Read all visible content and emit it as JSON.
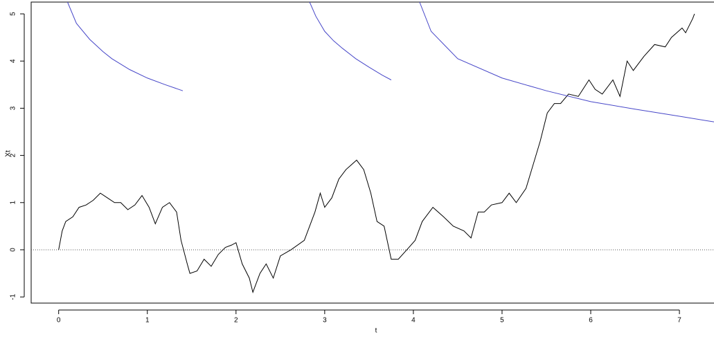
{
  "chart_data": {
    "type": "line",
    "xlabel": "t",
    "ylabel": "Xt",
    "xlim": [
      -0.31,
      7.39
    ],
    "ylim": [
      -1.13,
      5.25
    ],
    "xticks": [
      0,
      1,
      2,
      3,
      4,
      5,
      6,
      7
    ],
    "yticks": [
      -1,
      0,
      1,
      2,
      3,
      4,
      5
    ],
    "hline": 0,
    "series": [
      {
        "color": "#000000",
        "x": [
          0,
          0.04,
          0.08,
          0.16,
          0.23,
          0.31,
          0.39,
          0.47,
          0.55,
          0.63,
          0.7,
          0.78,
          0.86,
          0.94,
          1.02,
          1.09,
          1.17,
          1.25,
          1.33,
          1.38,
          1.45,
          1.48,
          1.56,
          1.64,
          1.72,
          1.8,
          1.88,
          1.95,
          2.0,
          2.07,
          2.15,
          2.19,
          2.27,
          2.34,
          2.42,
          2.5,
          2.62,
          2.77,
          2.89,
          2.95,
          3.0,
          3.08,
          3.16,
          3.24,
          3.36,
          3.44,
          3.52,
          3.59,
          3.67,
          3.75,
          3.83,
          3.95,
          4.02,
          4.1,
          4.22,
          4.34,
          4.45,
          4.57,
          4.65,
          4.73,
          4.8,
          4.88,
          5.0,
          5.08,
          5.16,
          5.27,
          5.35,
          5.43,
          5.51,
          5.59,
          5.66,
          5.75,
          5.86,
          5.98,
          6.05,
          6.13,
          6.25,
          6.33,
          6.41,
          6.48,
          6.6,
          6.72,
          6.84,
          6.91,
          7.03,
          7.07,
          7.15,
          7.17
        ],
        "values": [
          0,
          0.4,
          0.6,
          0.7,
          0.9,
          0.95,
          1.05,
          1.2,
          1.1,
          1.0,
          1.0,
          0.85,
          0.95,
          1.15,
          0.9,
          0.55,
          0.9,
          1.0,
          0.8,
          0.2,
          -0.3,
          -0.5,
          -0.45,
          -0.2,
          -0.35,
          -0.1,
          0.05,
          0.1,
          0.15,
          -0.3,
          -0.6,
          -0.9,
          -0.5,
          -0.3,
          -0.6,
          -0.13,
          0.0,
          0.2,
          0.8,
          1.2,
          0.9,
          1.1,
          1.5,
          1.7,
          1.9,
          1.7,
          1.2,
          0.6,
          0.5,
          -0.2,
          -0.2,
          0.05,
          0.2,
          0.6,
          0.9,
          0.7,
          0.5,
          0.4,
          0.25,
          0.8,
          0.8,
          0.95,
          1.0,
          1.2,
          1.0,
          1.3,
          1.8,
          2.3,
          2.9,
          3.1,
          3.1,
          3.3,
          3.25,
          3.6,
          3.4,
          3.3,
          3.6,
          3.25,
          4.0,
          3.8,
          4.1,
          4.35,
          4.3,
          4.5,
          4.7,
          4.6,
          4.9,
          5.0
        ]
      },
      {
        "color": "#4646c8",
        "x": [
          0.1,
          0.2,
          0.35,
          0.5,
          0.6,
          0.8,
          1.0,
          1.2,
          1.4
        ],
        "values": [
          5.25,
          4.8,
          4.46,
          4.2,
          4.05,
          3.82,
          3.64,
          3.5,
          3.37
        ]
      },
      {
        "color": "#4646c8",
        "x": [
          2.83,
          2.9,
          3.0,
          3.1,
          3.2,
          3.35,
          3.5,
          3.65,
          3.75
        ],
        "values": [
          5.25,
          4.95,
          4.63,
          4.43,
          4.27,
          4.05,
          3.87,
          3.7,
          3.6
        ]
      },
      {
        "color": "#4646c8",
        "x": [
          4.07,
          4.2,
          4.5,
          5.0,
          5.5,
          6.0,
          6.5,
          7.0,
          7.39
        ],
        "values": [
          5.25,
          4.63,
          4.05,
          3.64,
          3.37,
          3.14,
          2.98,
          2.83,
          2.71
        ]
      }
    ]
  }
}
